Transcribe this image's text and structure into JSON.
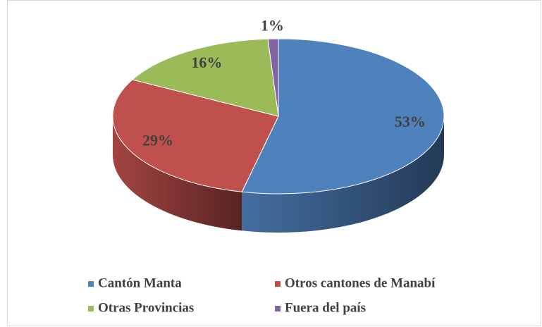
{
  "chart_data": {
    "type": "pie",
    "categories": [
      "Cantón Manta",
      "Otros cantones de Manabí",
      "Otras Provincias",
      "Fuera del país"
    ],
    "values": [
      53,
      29,
      16,
      1
    ],
    "value_labels": [
      "53%",
      "29%",
      "16%",
      "1%"
    ],
    "colors": [
      "#4f81bd",
      "#c0504d",
      "#9bbb59",
      "#8064a2"
    ],
    "legend": "bottom"
  }
}
